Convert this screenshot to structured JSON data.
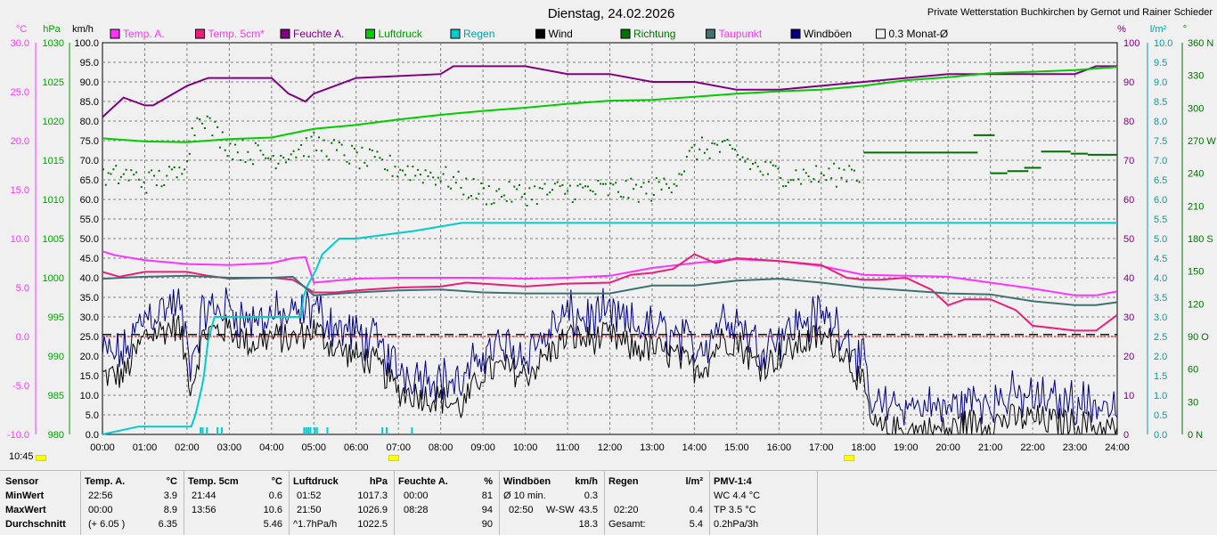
{
  "title": "Dienstag, 24.02.2026",
  "credit": "Private Wetterstation Buchkirchen by Gernot und Rainer Schieder",
  "current_time_label": "10:45",
  "colors": {
    "temp_a": "#ff33ff",
    "temp_5cm": "#e8207a",
    "feuchte": "#800080",
    "luftdruck": "#00cc00",
    "regen": "#00cccc",
    "wind": "#000000",
    "richtung": "#007000",
    "taupunkt": "#407070",
    "windboeen": "#000080",
    "monat": "#f0f0f0",
    "grid": "#808080"
  },
  "legend": [
    {
      "label": "Temp. A.",
      "color": "#ff33ff",
      "text_color": "#ff33ff"
    },
    {
      "label": "Temp. 5cm*",
      "color": "#e8207a",
      "text_color": "#ff33ff"
    },
    {
      "label": "Feuchte A.",
      "color": "#800080",
      "text_color": "#800080"
    },
    {
      "label": "Luftdruck",
      "color": "#00cc00",
      "text_color": "#00a000"
    },
    {
      "label": "Regen",
      "color": "#00cccc",
      "text_color": "#00a0a0"
    },
    {
      "label": "Wind",
      "color": "#000000",
      "text_color": "#000000"
    },
    {
      "label": "Richtung",
      "color": "#007000",
      "text_color": "#007000"
    },
    {
      "label": "Taupunkt",
      "color": "#407070",
      "text_color": "#ff33ff"
    },
    {
      "label": "Windböen",
      "color": "#000080",
      "text_color": "#000000"
    },
    {
      "label": "0.3 Monat-Ø",
      "color": "#f0f0f0",
      "text_color": "#000000"
    }
  ],
  "chart_data": {
    "type": "line",
    "x_ticks": [
      "00:00",
      "01:00",
      "02:00",
      "03:00",
      "04:00",
      "05:00",
      "06:00",
      "07:00",
      "08:00",
      "09:00",
      "10:00",
      "11:00",
      "12:00",
      "13:00",
      "14:00",
      "15:00",
      "16:00",
      "17:00",
      "18:00",
      "19:00",
      "20:00",
      "21:00",
      "22:00",
      "23:00",
      "24:00"
    ],
    "axes": {
      "temp": {
        "unit": "°C",
        "min": -10,
        "max": 30,
        "ticks": [
          "30.0",
          "25.0",
          "20.0",
          "15.0",
          "10.0",
          "5.0",
          "0.0",
          "-5.0",
          "-10.0"
        ]
      },
      "pressure": {
        "unit": "hPa",
        "min": 980,
        "max": 1030,
        "ticks": [
          "1030",
          "1025",
          "1020",
          "1015",
          "1010",
          "1005",
          "1000",
          "995",
          "990",
          "985",
          "980"
        ]
      },
      "wind": {
        "unit": "km/h",
        "min": 0,
        "max": 100,
        "ticks": [
          "100.0",
          "95.0",
          "90.0",
          "85.0",
          "80.0",
          "75.0",
          "70.0",
          "65.0",
          "60.0",
          "55.0",
          "50.0",
          "45.0",
          "40.0",
          "35.0",
          "30.0",
          "25.0",
          "20.0",
          "15.0",
          "10.0",
          "5.0",
          "0.0"
        ]
      },
      "humidity": {
        "unit": "%",
        "min": 0,
        "max": 100,
        "ticks": [
          "100",
          "90",
          "80",
          "70",
          "60",
          "50",
          "40",
          "30",
          "20",
          "10",
          "0"
        ]
      },
      "rain": {
        "unit": "l/m²",
        "min": 0,
        "max": 10,
        "ticks": [
          "10.0",
          "9.5",
          "9.0",
          "8.5",
          "8.0",
          "7.5",
          "7.0",
          "6.5",
          "6.0",
          "5.5",
          "5.0",
          "4.5",
          "4.0",
          "3.5",
          "3.0",
          "2.5",
          "2.0",
          "1.5",
          "1.0",
          "0.5",
          "0.0"
        ]
      },
      "direction": {
        "unit": "°",
        "min": 0,
        "max": 360,
        "ticks": [
          "360 N",
          "330",
          "300",
          "270 W",
          "240",
          "210",
          "180 S",
          "150",
          "120",
          "90 O",
          "60",
          "30",
          "0 N"
        ]
      }
    },
    "series": [
      {
        "name": "Temp. A.",
        "axis": "temp",
        "x": [
          0,
          0.3,
          1,
          2,
          3,
          4,
          4.5,
          4.8,
          5,
          6,
          7,
          8,
          9,
          10,
          11,
          12,
          13,
          14,
          15,
          16,
          17,
          18,
          19,
          20,
          21,
          22,
          23,
          23.5,
          24
        ],
        "y": [
          8.7,
          8.3,
          7.8,
          7.4,
          7.3,
          7.5,
          8.0,
          8.1,
          5.5,
          5.9,
          6.0,
          6.0,
          6.0,
          5.9,
          6.0,
          6.2,
          7.0,
          7.5,
          7.9,
          7.7,
          7.2,
          6.3,
          6.2,
          6.1,
          5.5,
          4.9,
          4.2,
          4.2,
          4.6
        ]
      },
      {
        "name": "Temp. 5cm*",
        "axis": "temp",
        "x": [
          0,
          0.4,
          1,
          2,
          2.5,
          3,
          4,
          4.5,
          5,
          5.5,
          6,
          7,
          8,
          8.6,
          9,
          10,
          11,
          12,
          12.5,
          13,
          13.5,
          14,
          14.5,
          15,
          16,
          17,
          17.6,
          18,
          18.4,
          19,
          19.6,
          20,
          20.4,
          21,
          21.6,
          22,
          23,
          23.5,
          24
        ],
        "y": [
          6.6,
          6.1,
          6.6,
          6.6,
          6.2,
          5.9,
          6.0,
          5.8,
          4.5,
          4.5,
          4.7,
          5.0,
          5.1,
          5.5,
          5.4,
          5.1,
          5.4,
          5.5,
          6.3,
          6.5,
          6.9,
          8.4,
          7.5,
          8.0,
          7.7,
          7.3,
          6.0,
          5.8,
          5.8,
          6.0,
          4.8,
          3.2,
          3.8,
          3.8,
          2.7,
          1.1,
          0.6,
          0.6,
          2.2
        ]
      },
      {
        "name": "Feuchte A.",
        "axis": "humidity",
        "x": [
          0,
          0.5,
          1,
          1.2,
          2,
          2.5,
          3,
          4,
          4.4,
          4.8,
          5,
          5.5,
          6,
          8,
          8.3,
          10,
          10.5,
          11,
          12,
          13,
          14,
          15,
          16,
          17,
          18,
          19,
          20,
          21,
          22,
          23,
          23.5,
          24
        ],
        "y": [
          81,
          86,
          84,
          84,
          89,
          91,
          91,
          91,
          87,
          85,
          87,
          89,
          91,
          92,
          94,
          94,
          93,
          92,
          92,
          90,
          90,
          88,
          88,
          89,
          90,
          91,
          92,
          92,
          92,
          92,
          94,
          94
        ]
      },
      {
        "name": "Luftdruck",
        "axis": "pressure",
        "x": [
          0,
          1,
          2,
          3,
          4,
          5,
          6,
          7,
          8,
          9,
          10,
          11,
          12,
          13,
          14,
          15,
          16,
          17,
          18,
          19,
          20,
          21,
          22,
          23,
          24
        ],
        "y": [
          1017.8,
          1017.4,
          1017.3,
          1017.7,
          1017.9,
          1019.0,
          1019.5,
          1020.2,
          1020.8,
          1021.3,
          1021.7,
          1022.2,
          1022.6,
          1022.7,
          1023.1,
          1023.5,
          1023.8,
          1024.0,
          1024.5,
          1025.2,
          1025.6,
          1026.1,
          1026.3,
          1026.5,
          1026.9
        ]
      },
      {
        "name": "Regen",
        "axis": "rain",
        "x": [
          0,
          0.85,
          2.1,
          2.2,
          2.35,
          2.4,
          2.5,
          2.65,
          4.7,
          4.75,
          4.85,
          5.05,
          5.2,
          5.6,
          6.0,
          7.4,
          8.5,
          24
        ],
        "y": [
          0,
          0.2,
          0.2,
          0.5,
          1.2,
          1.5,
          2.4,
          3.0,
          3.0,
          3.5,
          3.8,
          4.2,
          4.6,
          5.0,
          5.0,
          5.2,
          5.4,
          5.4
        ]
      },
      {
        "name": "Taupunkt",
        "axis": "temp",
        "x": [
          0,
          1,
          2,
          3,
          4,
          4.5,
          5,
          6,
          7,
          8,
          9,
          10,
          11,
          12,
          13,
          14,
          15,
          16,
          17,
          18,
          19,
          20,
          21,
          22,
          23,
          23.5,
          24
        ],
        "y": [
          5.9,
          6.1,
          6.2,
          6.0,
          6.0,
          6.1,
          4.2,
          4.5,
          4.7,
          4.8,
          4.5,
          4.4,
          4.4,
          4.4,
          5.2,
          5.2,
          5.7,
          5.9,
          5.5,
          5.0,
          4.7,
          4.4,
          4.3,
          3.6,
          3.2,
          3.2,
          3.5
        ]
      },
      {
        "name": "Richtung",
        "axis": "direction",
        "x": [
          18.0,
          19.2,
          19.6,
          20.7
        ],
        "y": [
          259,
          259,
          259,
          259
        ]
      }
    ],
    "reference_lines": [
      {
        "axis": "temp",
        "value": 0,
        "color": "#ff0000",
        "style": "dotted"
      },
      {
        "axis": "rain",
        "value": 2.55,
        "color": "#000000",
        "style": "dashed"
      }
    ]
  },
  "table": {
    "sensor": {
      "header": "Sensor",
      "rows": [
        "MinWert",
        "MaxWert",
        "Durchschnitt"
      ]
    },
    "temp_a": {
      "header": "Temp. A.",
      "unit": "°C",
      "rows": [
        [
          "22:56",
          "3.9"
        ],
        [
          "00:00",
          "8.9"
        ],
        [
          "(+ 6.05 )",
          "6.35"
        ]
      ]
    },
    "temp_5cm": {
      "header": "Temp. 5cm",
      "unit": "°C",
      "rows": [
        [
          "21:44",
          "0.6"
        ],
        [
          "13:56",
          "10.6"
        ],
        [
          "",
          "5.46"
        ]
      ]
    },
    "luftdruck": {
      "header": "Luftdruck",
      "unit": "hPa",
      "rows": [
        [
          "01:52",
          "1017.3"
        ],
        [
          "21:50",
          "1026.9"
        ],
        [
          "^1.7hPa/h",
          "1022.5"
        ]
      ]
    },
    "feuchte": {
      "header": "Feuchte A.",
      "unit": "%",
      "rows": [
        [
          "00:00",
          "81"
        ],
        [
          "08:28",
          "94"
        ],
        [
          "",
          "90"
        ]
      ]
    },
    "windboeen": {
      "header": "Windböen",
      "unit": "km/h",
      "rows": [
        [
          "Ø 10 min.",
          "",
          "0.3"
        ],
        [
          "02:50",
          "W-SW",
          "43.5"
        ],
        [
          "",
          "",
          "18.3"
        ]
      ]
    },
    "regen": {
      "header": "Regen",
      "unit": "l/m²",
      "rows": [
        [
          "",
          ""
        ],
        [
          "02:20",
          "0.4"
        ],
        [
          "Gesamt:",
          "5.4"
        ]
      ]
    },
    "pmv": {
      "header": "PMV-1:4",
      "rows": [
        "WC 4.4 °C",
        "TP 3.5 °C",
        "0.2hPa/3h"
      ]
    }
  }
}
